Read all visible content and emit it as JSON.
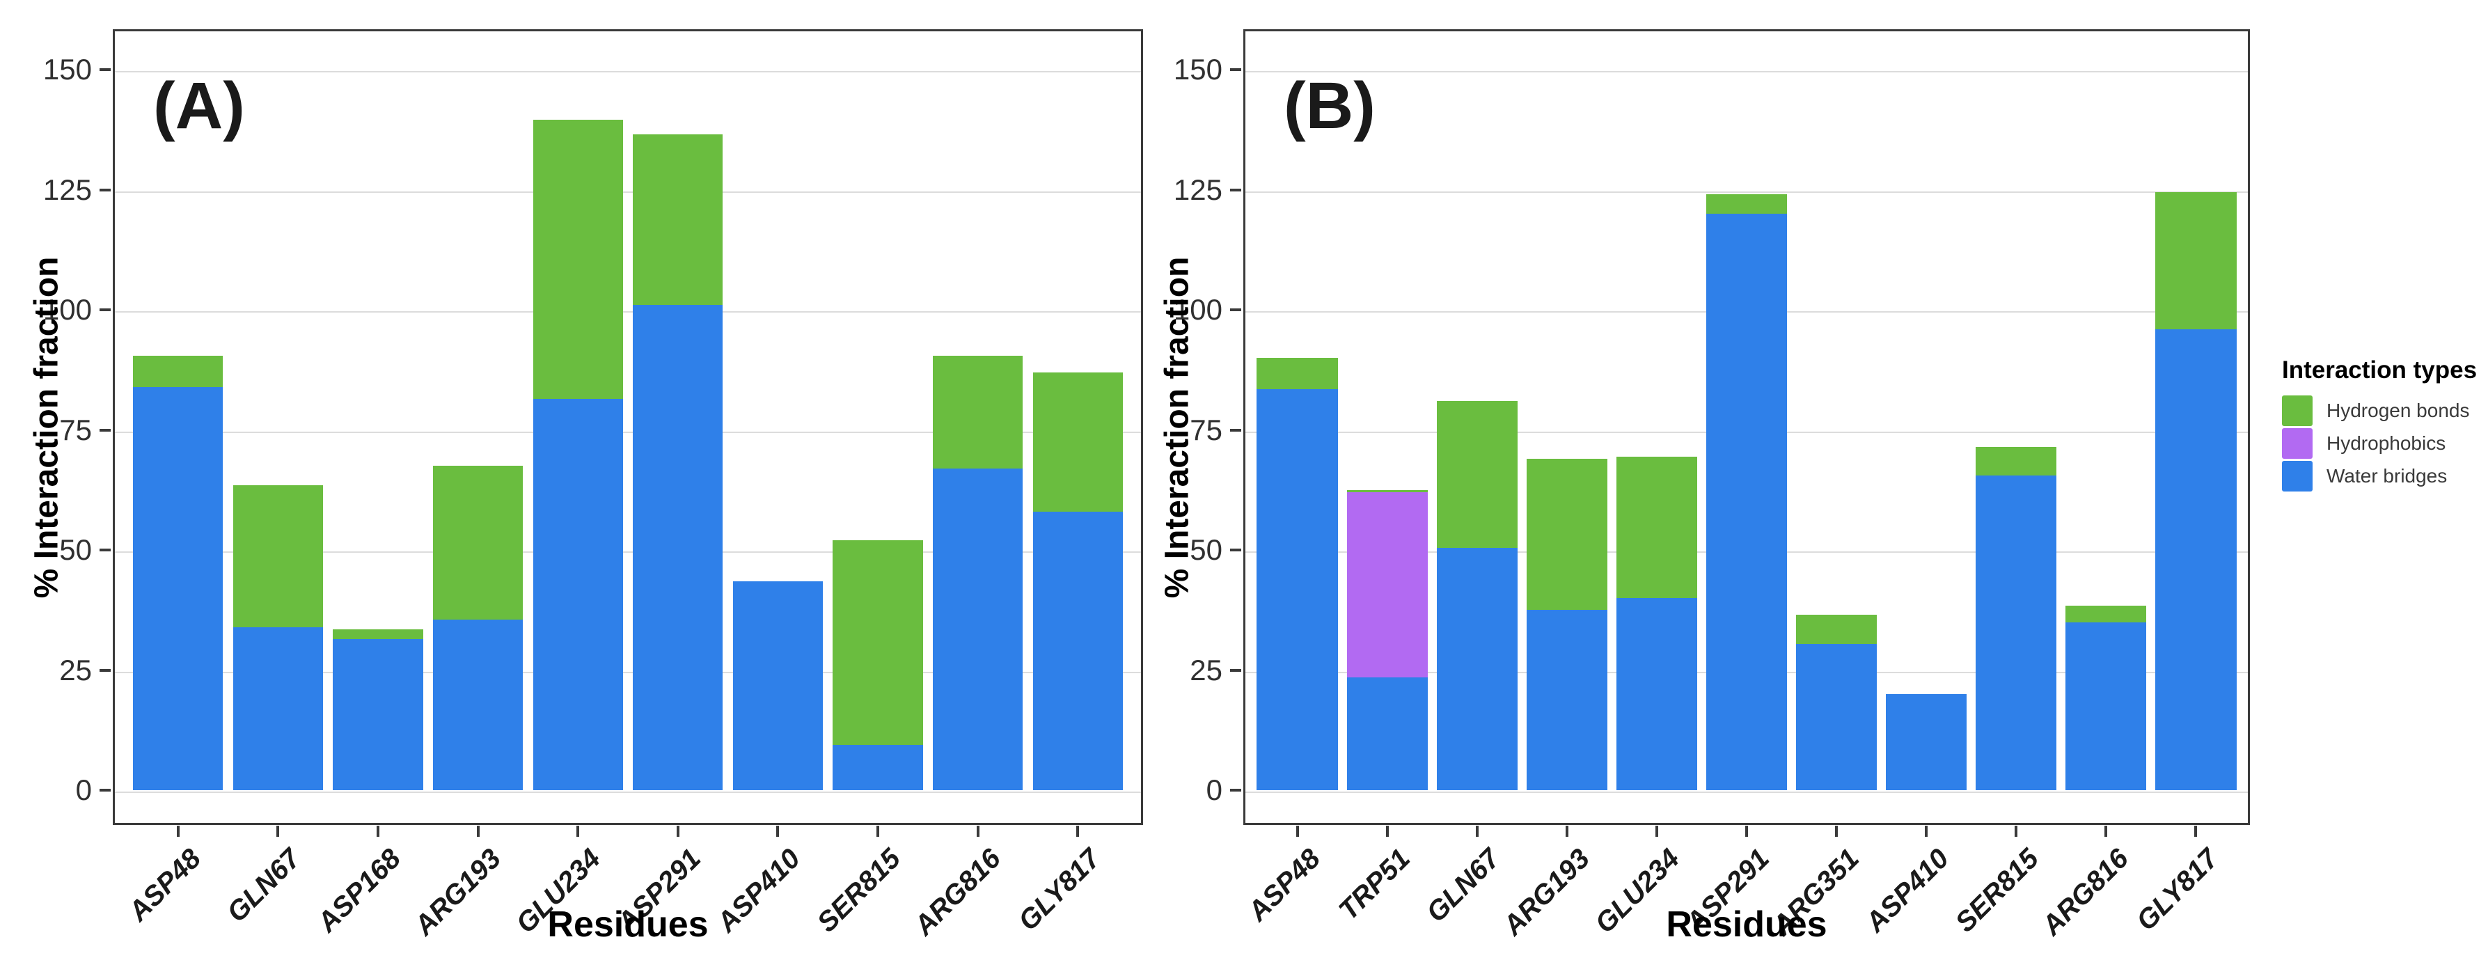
{
  "figure": {
    "background": "#ffffff",
    "panel_labels": [
      "(A)",
      "(B)"
    ]
  },
  "colors": {
    "hydrogen_bonds": "#6abd3f",
    "hydrophobics": "#b26af2",
    "water_bridges": "#2f80e9",
    "grid": "#dcdcdc",
    "spine": "#3a3a3a",
    "tick_text": "#303030",
    "label_text": "#000000"
  },
  "legend": {
    "title": "Interaction types",
    "items": [
      {
        "label": "Hydrogen bonds",
        "color_key": "hydrogen_bonds"
      },
      {
        "label": "Hydrophobics",
        "color_key": "hydrophobics"
      },
      {
        "label": "Water bridges",
        "color_key": "water_bridges"
      }
    ]
  },
  "chart_data": [
    {
      "type": "bar",
      "stacked": true,
      "panel_label": "(A)",
      "xlabel": "Residues",
      "ylabel": "% Interaction fraction",
      "categories": [
        "ASP48",
        "GLN67",
        "ASP168",
        "ARG193",
        "GLU234",
        "ASP291",
        "ASP410",
        "SER815",
        "ARG816",
        "GLY817"
      ],
      "series": [
        {
          "name": "Water bridges",
          "color_key": "water_bridges",
          "values": [
            84,
            34,
            31.5,
            35.5,
            81.5,
            101,
            43.5,
            9.5,
            67,
            58
          ]
        },
        {
          "name": "Hydrophobics",
          "color_key": "hydrophobics",
          "values": [
            0,
            0,
            0,
            0,
            0,
            0,
            0,
            0,
            0,
            0
          ]
        },
        {
          "name": "Hydrogen bonds",
          "color_key": "hydrogen_bonds",
          "values": [
            6.5,
            29.5,
            2,
            32,
            58,
            35.5,
            0,
            42.5,
            23.5,
            29
          ]
        }
      ],
      "totals": [
        90.5,
        63.5,
        33.5,
        67.5,
        139.5,
        136.5,
        43.5,
        52,
        90.5,
        87
      ],
      "yticks": [
        0,
        25,
        50,
        75,
        100,
        125,
        150
      ],
      "ylim": [
        -7.2,
        158.4
      ],
      "grid": true,
      "legend_position": "right"
    },
    {
      "type": "bar",
      "stacked": true,
      "panel_label": "(B)",
      "xlabel": "Residues",
      "ylabel": "% Interaction fraction",
      "categories": [
        "ASP48",
        "TRP51",
        "GLN67",
        "ARG193",
        "GLU234",
        "ASP291",
        "ARG351",
        "ASP410",
        "SER815",
        "ARG816",
        "GLY817"
      ],
      "series": [
        {
          "name": "Water bridges",
          "color_key": "water_bridges",
          "values": [
            83.5,
            23.5,
            50.5,
            37.5,
            40,
            120,
            30.5,
            20,
            65.5,
            35,
            96
          ]
        },
        {
          "name": "Hydrophobics",
          "color_key": "hydrophobics",
          "values": [
            0,
            38.5,
            0,
            0,
            0,
            0,
            0,
            0,
            0,
            0,
            0
          ]
        },
        {
          "name": "Hydrogen bonds",
          "color_key": "hydrogen_bonds",
          "values": [
            6.5,
            0.5,
            30.5,
            31.5,
            29.5,
            4,
            6,
            0,
            6,
            3.5,
            28.5
          ]
        }
      ],
      "totals": [
        90,
        62.5,
        81,
        69,
        69.5,
        124,
        36.5,
        20,
        71.5,
        38.5,
        124.5
      ],
      "yticks": [
        0,
        25,
        50,
        75,
        100,
        125,
        150
      ],
      "ylim": [
        -7.2,
        158.4
      ],
      "grid": true,
      "legend_position": "right"
    }
  ]
}
